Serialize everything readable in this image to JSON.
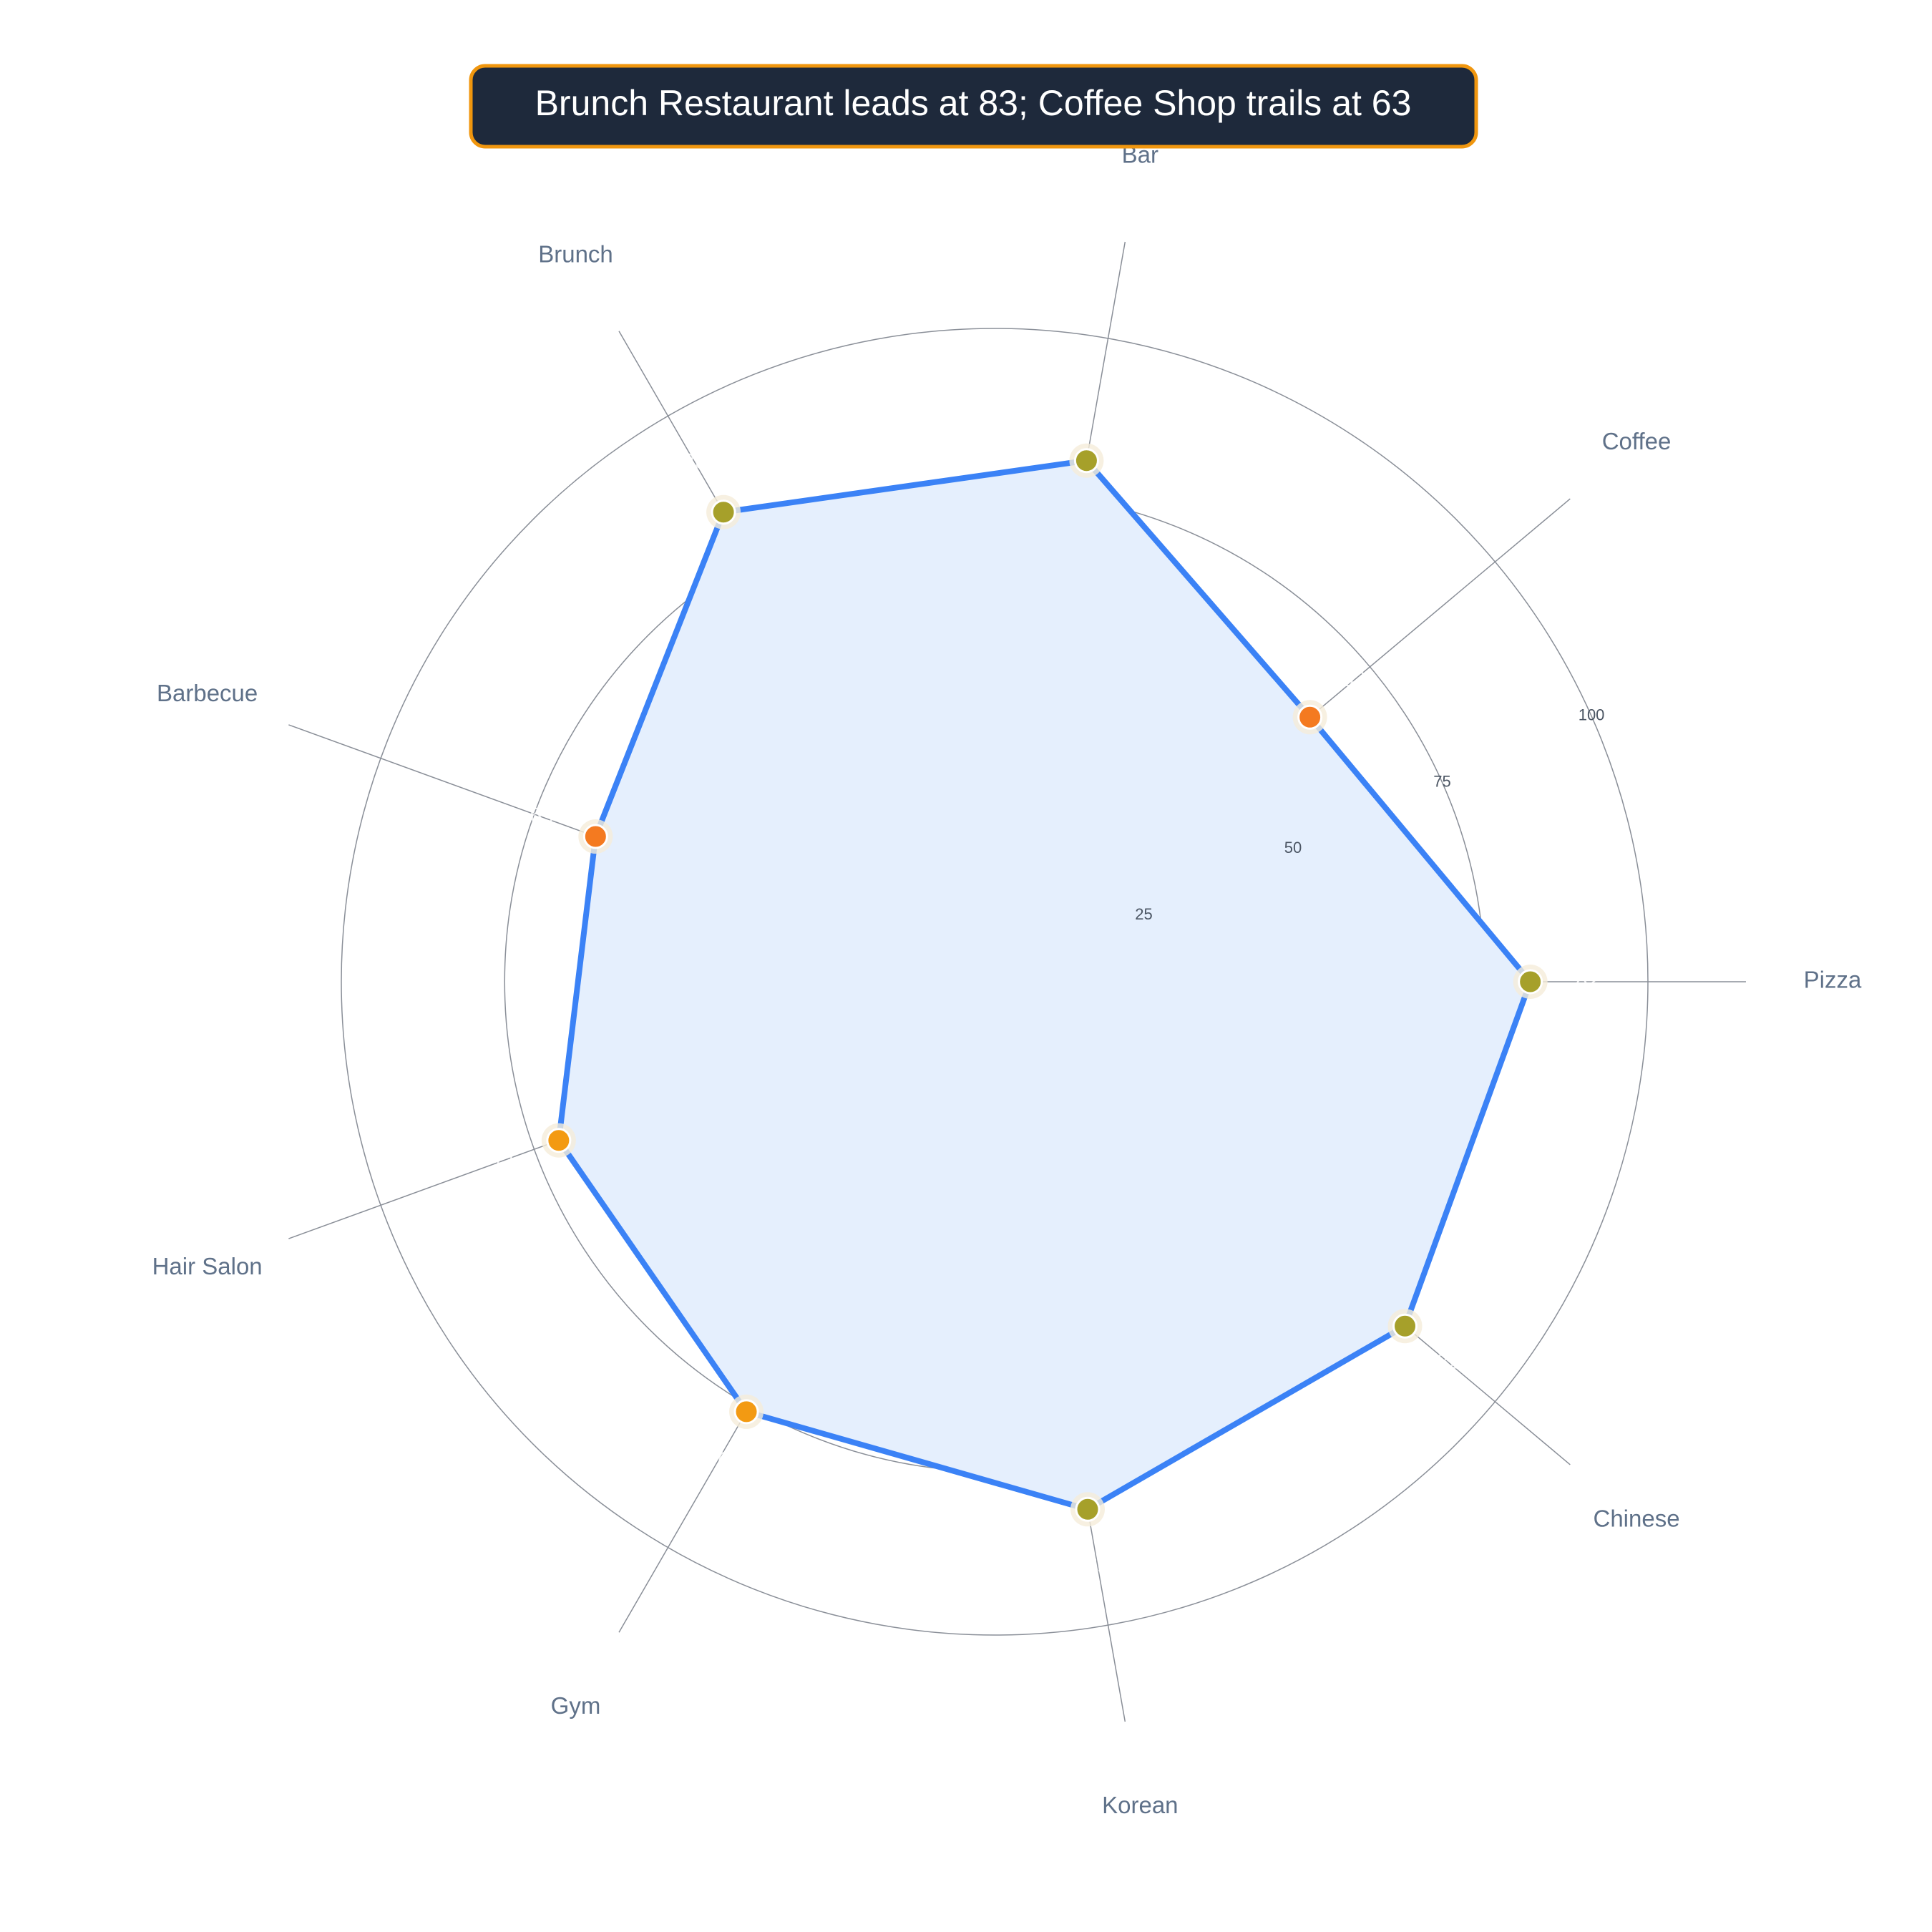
{
  "chart_data": {
    "type": "radar",
    "title": "Brunch Restaurant leads at 83; Coffee Shop trails at 63",
    "categories": [
      "Pizza",
      "Coffee",
      "Bar",
      "Brunch",
      "Barbecue",
      "Hair Salon",
      "Gym",
      "Korean",
      "Chinese"
    ],
    "values": [
      82,
      63,
      81,
      83,
      65,
      71,
      76,
      82,
      82
    ],
    "point_colors": [
      "#a6a02a",
      "#f47a20",
      "#a6a02a",
      "#a6a02a",
      "#f47a20",
      "#f39a12",
      "#f39a12",
      "#a6a02a",
      "#a6a02a"
    ],
    "color": "#3b82f6",
    "fill": "#e5effd",
    "rlim": [
      0,
      100
    ],
    "rticks": [
      25,
      50,
      75,
      100
    ],
    "grid": true
  }
}
